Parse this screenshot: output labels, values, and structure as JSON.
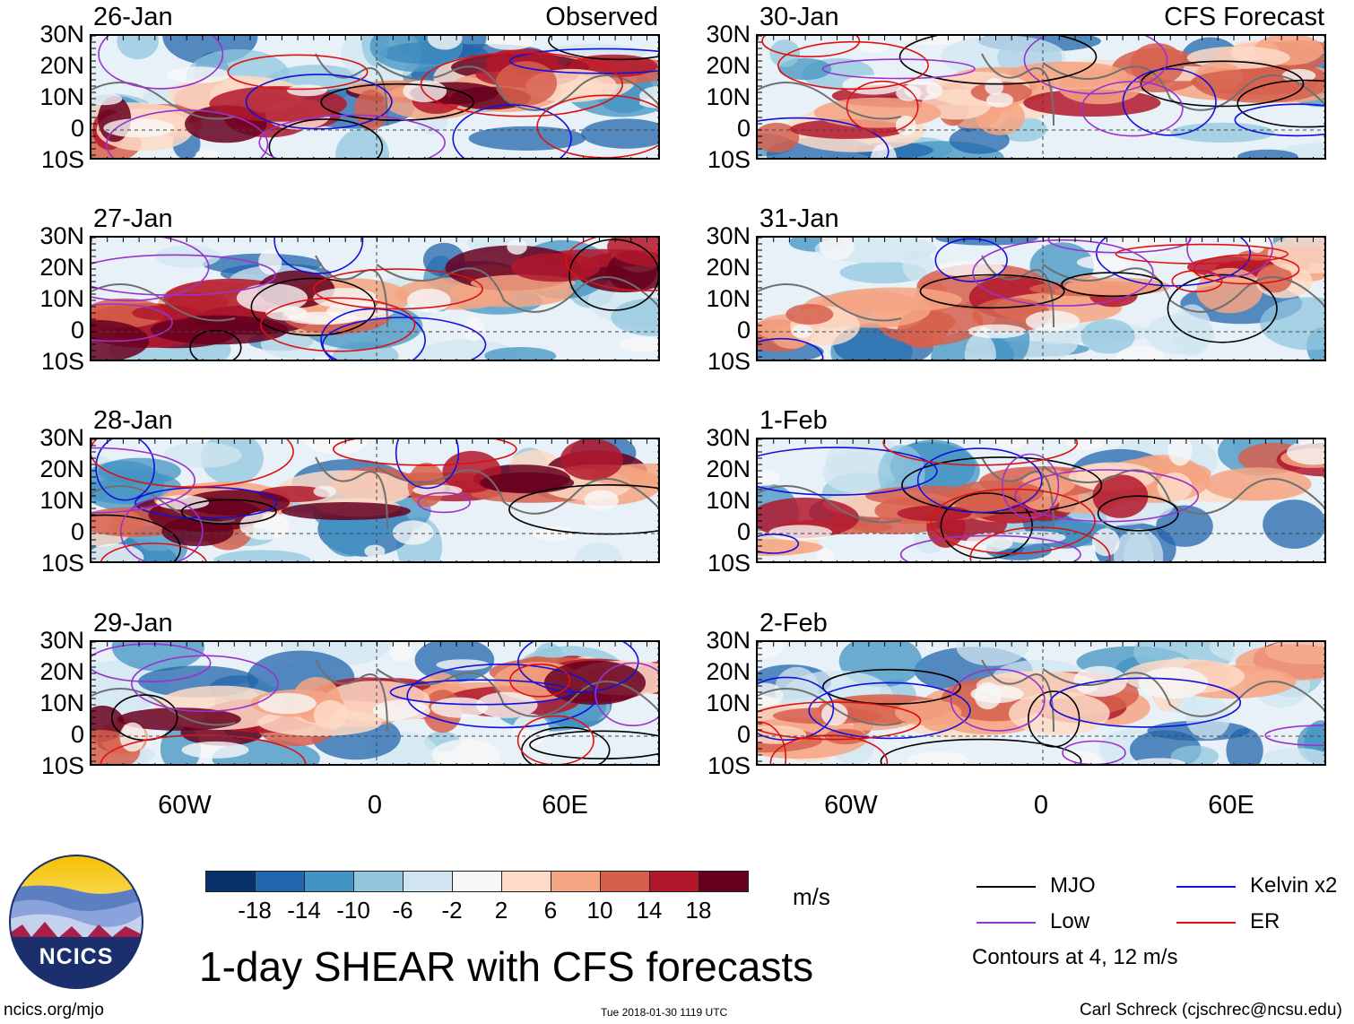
{
  "panels": [
    {
      "date": "26-Jan",
      "label": "Observed"
    },
    {
      "date": "30-Jan",
      "label": "CFS Forecast"
    },
    {
      "date": "27-Jan",
      "label": ""
    },
    {
      "date": "31-Jan",
      "label": ""
    },
    {
      "date": "28-Jan",
      "label": ""
    },
    {
      "date": "1-Feb",
      "label": ""
    },
    {
      "date": "29-Jan",
      "label": ""
    },
    {
      "date": "2-Feb",
      "label": ""
    }
  ],
  "lat_labels": [
    "30N",
    "20N",
    "10N",
    "0",
    "10S"
  ],
  "lon_labels": [
    "60W",
    "0",
    "60E"
  ],
  "colorbar": {
    "colors": [
      "#08306b",
      "#2166ac",
      "#4393c3",
      "#92c5de",
      "#d1e5f0",
      "#f7f7f7",
      "#fddbc7",
      "#f4a582",
      "#d6604d",
      "#b2182b",
      "#67001f"
    ],
    "labels": [
      "-18",
      "-14",
      "-10",
      "-6",
      "-2",
      "2",
      "6",
      "10",
      "14",
      "18"
    ],
    "units": "m/s"
  },
  "legend": {
    "items": [
      {
        "name": "MJO",
        "color": "#000000"
      },
      {
        "name": "Kelvin x2",
        "color": "#1010e0"
      },
      {
        "name": "Low",
        "color": "#9a32cd"
      },
      {
        "name": "ER",
        "color": "#e01010"
      }
    ],
    "note": "Contours at 4, 12 m/s"
  },
  "title": "1-day SHEAR with CFS forecasts",
  "logo_text": "NCICS",
  "footer": {
    "left": "ncics.org/mjo",
    "center": "Tue 2018-01-30 1119 UTC",
    "right": "Carl Schreck (cjschrec@ncsu.edu)"
  }
}
